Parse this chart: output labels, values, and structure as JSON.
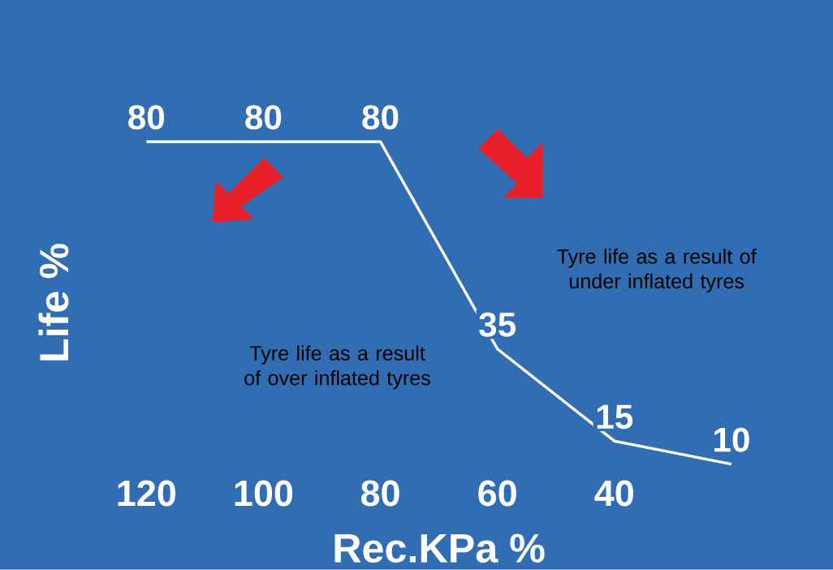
{
  "chart_data": {
    "type": "line",
    "xlabel": "Rec.KPa %",
    "ylabel": "Life %",
    "categories": [
      "120",
      "100",
      "80",
      "60",
      "40",
      null
    ],
    "values": [
      80,
      80,
      80,
      35,
      15,
      10
    ],
    "color": "#ffffff",
    "data_labels": true,
    "marker": "none",
    "line_style": "solid",
    "annotations": [
      "Tyre life as a result of over inflated tyres",
      "Tyre life as a result of under inflated tyres"
    ]
  }
}
